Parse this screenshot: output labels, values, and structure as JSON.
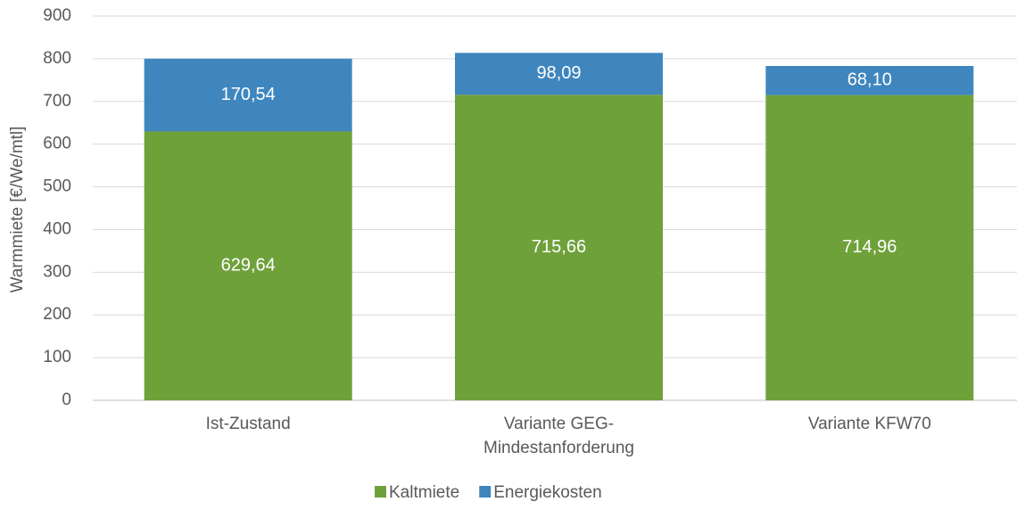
{
  "chart_data": {
    "type": "stacked_bar",
    "y_label": "Warmmiete [€/We/mtl]",
    "categories": [
      "Ist-Zustand",
      "Variante GEG-Mindestanforderung",
      "Variante KFW70"
    ],
    "series": [
      {
        "name": "Kaltmiete",
        "color": "#6fa13b",
        "values": [
          629.64,
          715.66,
          714.96
        ],
        "value_labels": [
          "629,64",
          "715,66",
          "714,96"
        ]
      },
      {
        "name": "Energiekosten",
        "color": "#3f86be",
        "values": [
          170.54,
          98.09,
          68.1
        ],
        "value_labels": [
          "170,54",
          "98,09",
          "68,10"
        ]
      }
    ],
    "ylim": [
      0,
      900
    ],
    "yticks": [
      0,
      100,
      200,
      300,
      400,
      500,
      600,
      700,
      800,
      900
    ],
    "grid": true,
    "legend": "bottom"
  }
}
